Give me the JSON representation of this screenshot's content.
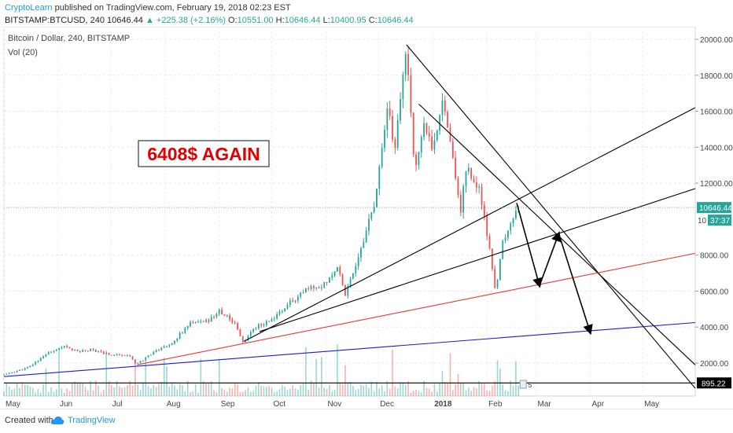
{
  "header": {
    "author": "CryptoLearn",
    "published_text": " published on TradingView.com, February 19, 2018 02:23 EST",
    "symbol": "BITSTAMP:BTCUSD, 240",
    "last": "10646.44",
    "change": "+225.38 (+2.16%)",
    "o_label": "O:",
    "o": "10551.00",
    "h_label": "H:",
    "h": "10646.44",
    "l_label": "L:",
    "l": "10400.95",
    "c_label": "C:",
    "c": "10646.44"
  },
  "footer": {
    "created_with": "Created with",
    "brand": "TradingView"
  },
  "chart_data": {
    "type": "candlestick",
    "title": "Bitcoin / Dollar, 240, BITSTAMP",
    "indicator": "Vol (20)",
    "annotation": "6408$ AGAIN",
    "x_ticks": [
      "May",
      "Jun",
      "Jul",
      "Aug",
      "Sep",
      "Oct",
      "Nov",
      "Dec",
      "2018",
      "Feb",
      "Mar",
      "Apr",
      "May"
    ],
    "y_ticks": [
      "20000.00",
      "18000.00",
      "16000.00",
      "14000.00",
      "12000.00",
      "8000.00",
      "6000.00",
      "4000.00",
      "2000.00"
    ],
    "ylim": [
      0,
      20500
    ],
    "current_price_label": "10646.44",
    "countdown_label": "37:37",
    "support_price_label": "895.22",
    "partial_tick_label": "10",
    "volume_badge": "5",
    "price_path": [
      [
        "2017-05-01",
        1350
      ],
      [
        "2017-05-15",
        1750
      ],
      [
        "2017-05-25",
        2500
      ],
      [
        "2017-06-05",
        2900
      ],
      [
        "2017-06-12",
        2650
      ],
      [
        "2017-06-20",
        2750
      ],
      [
        "2017-07-01",
        2450
      ],
      [
        "2017-07-10",
        2500
      ],
      [
        "2017-07-16",
        1950
      ],
      [
        "2017-07-25",
        2600
      ],
      [
        "2017-08-05",
        3100
      ],
      [
        "2017-08-15",
        4200
      ],
      [
        "2017-08-25",
        4300
      ],
      [
        "2017-09-01",
        4900
      ],
      [
        "2017-09-10",
        4200
      ],
      [
        "2017-09-15",
        3100
      ],
      [
        "2017-09-20",
        3900
      ],
      [
        "2017-10-01",
        4400
      ],
      [
        "2017-10-12",
        5400
      ],
      [
        "2017-10-21",
        6100
      ],
      [
        "2017-10-31",
        6400
      ],
      [
        "2017-11-08",
        7400
      ],
      [
        "2017-11-12",
        5800
      ],
      [
        "2017-11-20",
        8100
      ],
      [
        "2017-11-29",
        10900
      ],
      [
        "2017-12-07",
        16500
      ],
      [
        "2017-12-10",
        13500
      ],
      [
        "2017-12-17",
        19600
      ],
      [
        "2017-12-22",
        12500
      ],
      [
        "2017-12-27",
        15500
      ],
      [
        "2018-01-01",
        13500
      ],
      [
        "2018-01-07",
        17100
      ],
      [
        "2018-01-12",
        13500
      ],
      [
        "2018-01-17",
        10500
      ],
      [
        "2018-01-20",
        12900
      ],
      [
        "2018-01-28",
        11500
      ],
      [
        "2018-02-02",
        8500
      ],
      [
        "2018-02-06",
        6000
      ],
      [
        "2018-02-10",
        8600
      ],
      [
        "2018-02-15",
        10000
      ],
      [
        "2018-02-19",
        10646
      ]
    ],
    "trend_lines": [
      {
        "color": "#000000",
        "from": [
          "2017-12-17",
          19700
        ],
        "to": [
          "2018-05-31",
          600
        ]
      },
      {
        "color": "#000000",
        "from": [
          "2017-12-24",
          16400
        ],
        "to": [
          "2018-05-31",
          1900
        ]
      },
      {
        "color": "#000000",
        "from": [
          "2017-09-15",
          3200
        ],
        "to": [
          "2018-05-31",
          16200
        ]
      },
      {
        "color": "#000000",
        "from": [
          "2017-09-24",
          3750
        ],
        "to": [
          "2018-05-31",
          11700
        ]
      },
      {
        "color": "#e53935",
        "from": [
          "2017-07-16",
          1900
        ],
        "to": [
          "2018-05-31",
          8100
        ]
      },
      {
        "color": "#1a1adb",
        "from": [
          "2017-05-01",
          1250
        ],
        "to": [
          "2018-05-31",
          4250
        ]
      },
      {
        "color": "#000000",
        "from": [
          "2017-05-01",
          895
        ],
        "to": [
          "2018-05-31",
          895
        ]
      }
    ],
    "forecast_path": [
      [
        "2018-02-18",
        10900
      ],
      [
        "2018-03-03",
        6300
      ],
      [
        "2018-03-14",
        9200
      ],
      [
        "2018-04-01",
        3700
      ]
    ]
  }
}
